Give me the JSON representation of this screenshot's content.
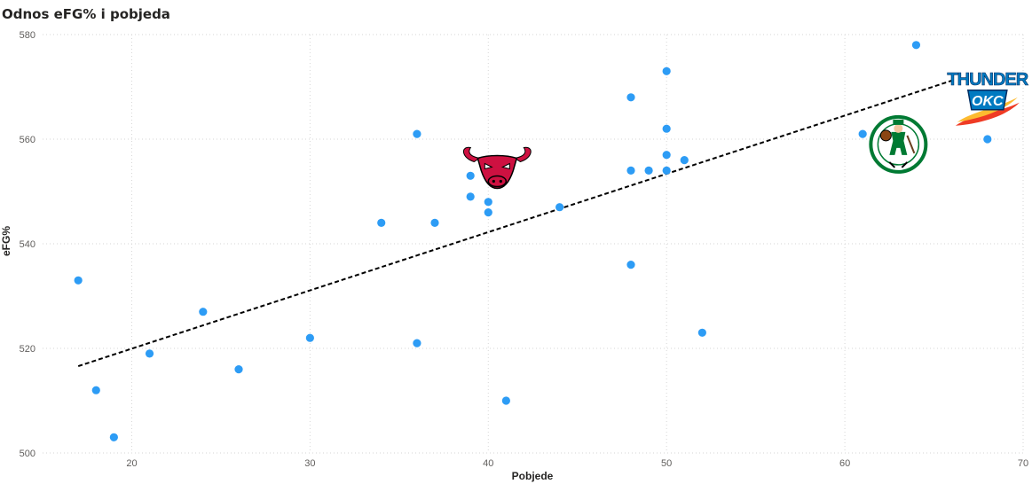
{
  "chart_data": {
    "type": "scatter",
    "title": "Odnos eFG% i pobjeda",
    "xlabel": "Pobjede",
    "ylabel": "eFG%",
    "xlim": [
      15,
      70
    ],
    "ylim": [
      500,
      580
    ],
    "xticks": [
      20,
      30,
      40,
      50,
      60,
      70
    ],
    "yticks": [
      500,
      520,
      540,
      560,
      580
    ],
    "grid": true,
    "point_color": "#2d9cf5",
    "trendline": {
      "style": "dashed",
      "color": "#000000",
      "from": [
        17,
        516.6
      ],
      "to": [
        66,
        571.2
      ]
    },
    "points": [
      {
        "x": 17,
        "y": 533
      },
      {
        "x": 18,
        "y": 512
      },
      {
        "x": 19,
        "y": 503
      },
      {
        "x": 21,
        "y": 519
      },
      {
        "x": 24,
        "y": 527
      },
      {
        "x": 26,
        "y": 516
      },
      {
        "x": 30,
        "y": 522
      },
      {
        "x": 34,
        "y": 544
      },
      {
        "x": 36,
        "y": 561
      },
      {
        "x": 36,
        "y": 521
      },
      {
        "x": 37,
        "y": 544
      },
      {
        "x": 39,
        "y": 553
      },
      {
        "x": 39,
        "y": 549
      },
      {
        "x": 40,
        "y": 548
      },
      {
        "x": 40,
        "y": 546
      },
      {
        "x": 41,
        "y": 510
      },
      {
        "x": 44,
        "y": 547
      },
      {
        "x": 48,
        "y": 568
      },
      {
        "x": 48,
        "y": 554
      },
      {
        "x": 48,
        "y": 536
      },
      {
        "x": 49,
        "y": 554
      },
      {
        "x": 50,
        "y": 573
      },
      {
        "x": 50,
        "y": 562
      },
      {
        "x": 50,
        "y": 557
      },
      {
        "x": 50,
        "y": 554
      },
      {
        "x": 51,
        "y": 556
      },
      {
        "x": 52,
        "y": 523
      },
      {
        "x": 61,
        "y": 561
      },
      {
        "x": 64,
        "y": 578
      },
      {
        "x": 68,
        "y": 560
      }
    ],
    "logos": [
      {
        "name": "chicago-bulls-logo",
        "x": 40.5,
        "y": 555
      },
      {
        "name": "boston-celtics-logo",
        "x": 63,
        "y": 559
      },
      {
        "name": "okc-thunder-logo",
        "x": 68,
        "y": 568,
        "text_top": "THUNDER",
        "text_bottom": "OKC"
      }
    ]
  }
}
